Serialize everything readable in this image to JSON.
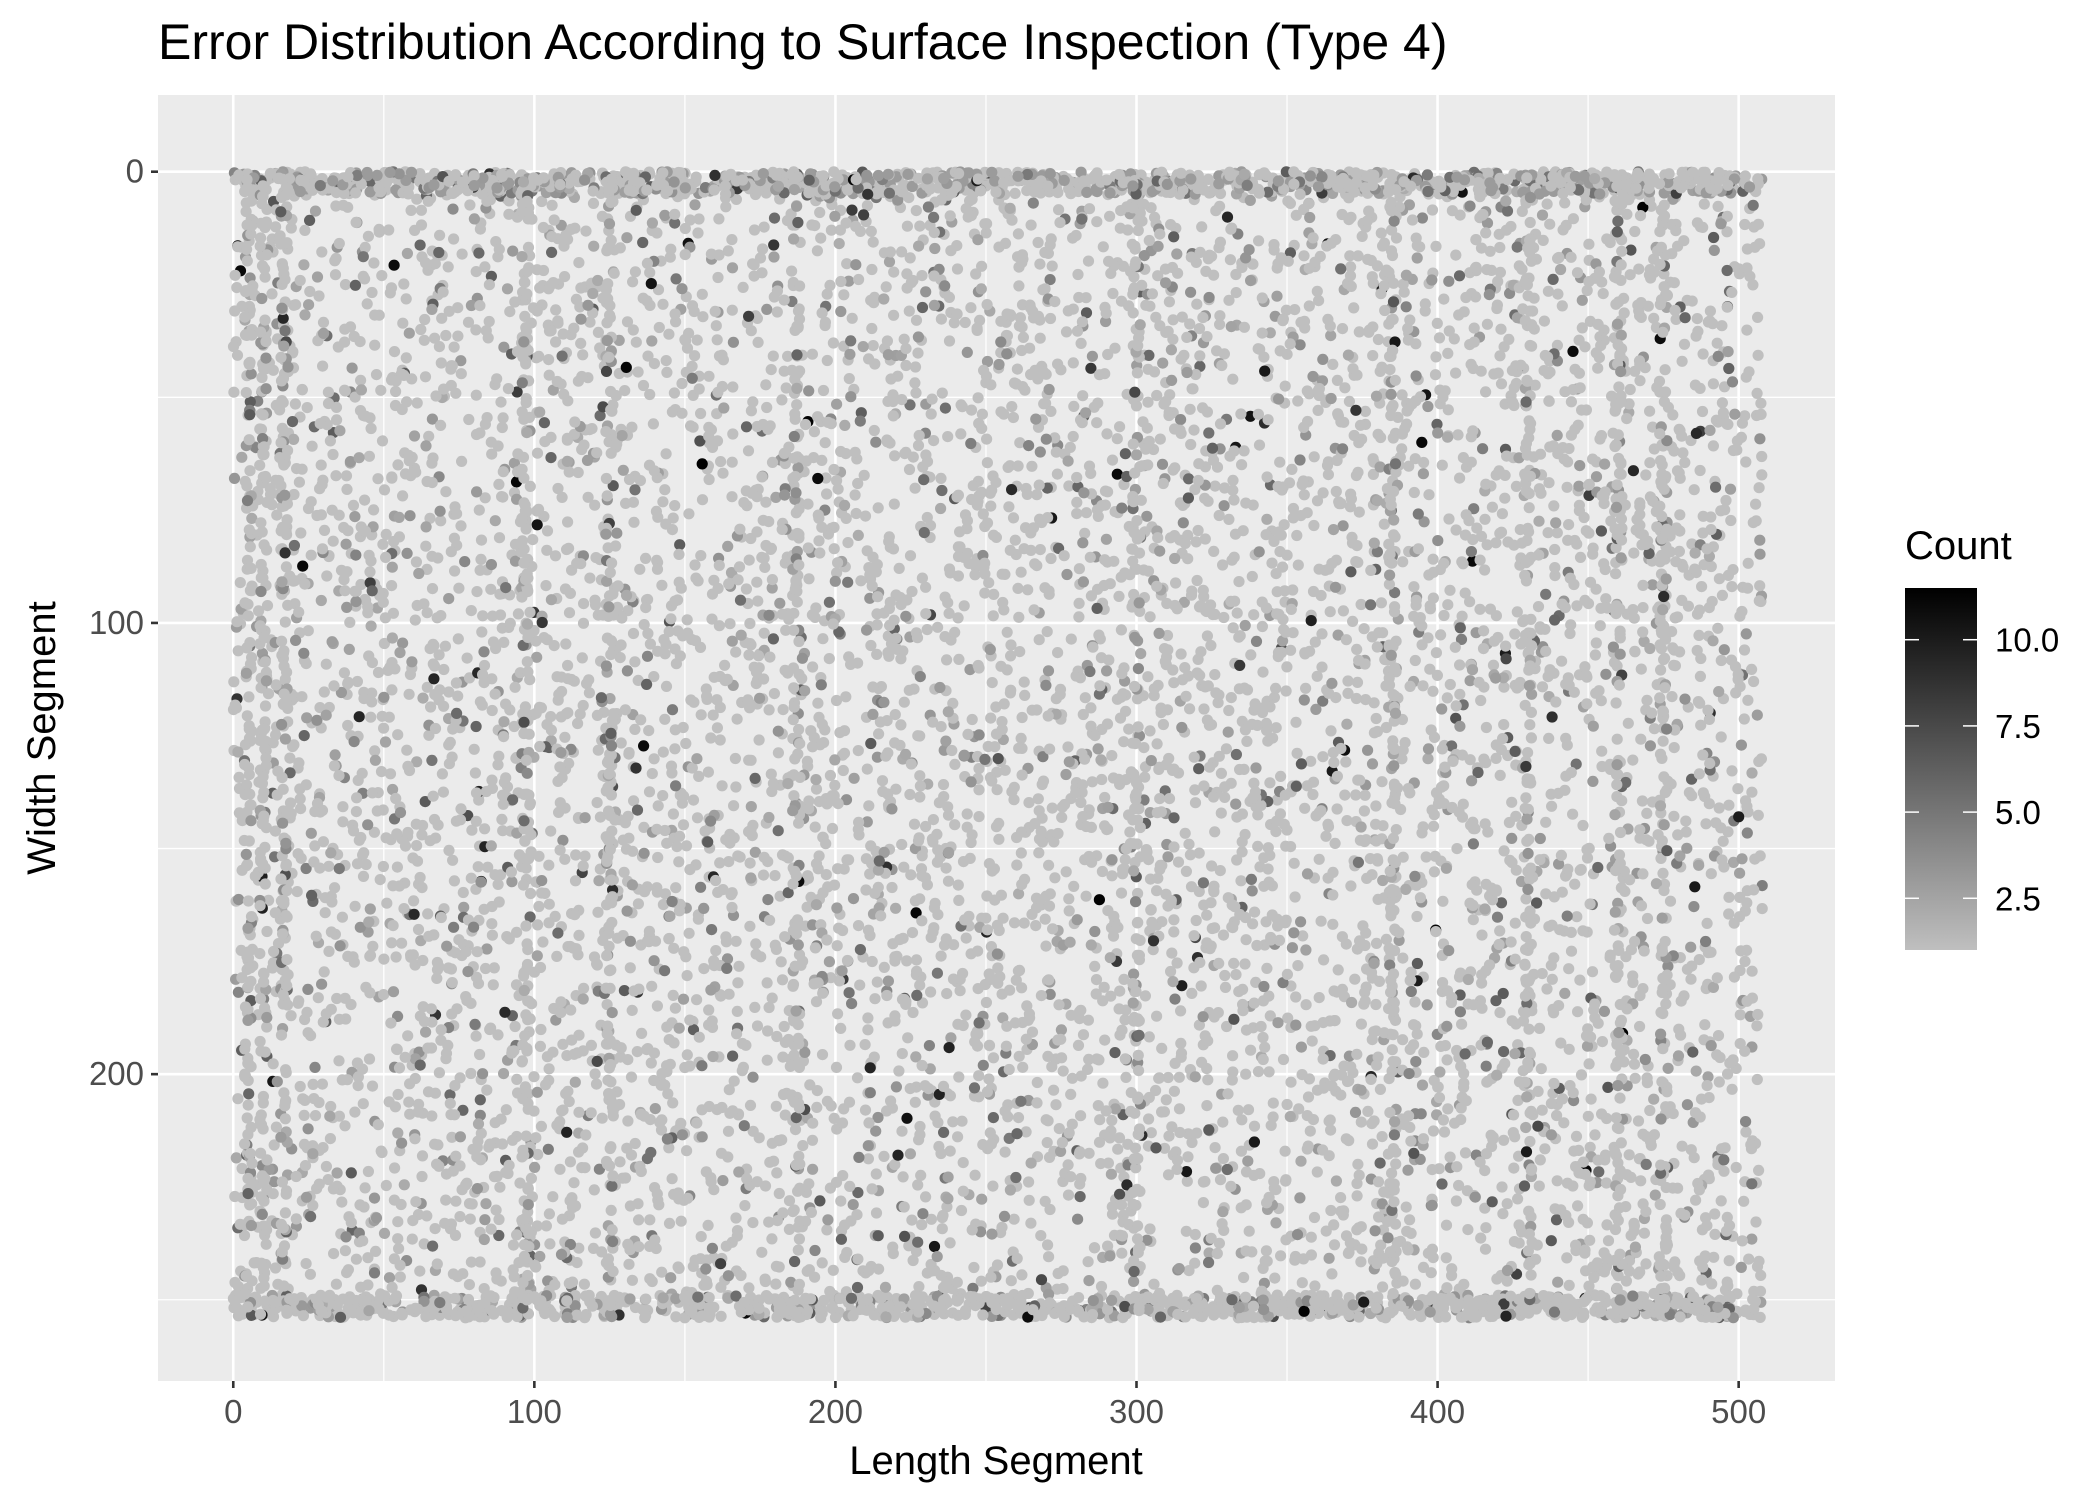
{
  "chart_data": {
    "type": "scatter",
    "title": "Error Distribution According to Surface Inspection (Type 4)",
    "xlabel": "Length Segment",
    "ylabel": "Width Segment",
    "xlim": [
      -25,
      532
    ],
    "ylim": [
      268,
      -17
    ],
    "y_reversed": true,
    "x_ticks": [
      0,
      100,
      200,
      300,
      400,
      500
    ],
    "y_ticks": [
      0,
      100,
      200
    ],
    "grid": true,
    "legend": {
      "title": "Count",
      "placement": "right",
      "type": "colorbar",
      "range": [
        1,
        11.5
      ],
      "ticks": [
        2.5,
        5.0,
        7.5,
        10.0
      ],
      "tick_labels": [
        "2.5",
        "5.0",
        "7.5",
        "10.0"
      ],
      "color_low": "#bfbfbf",
      "color_high": "#000000"
    },
    "colors": {
      "panel_background": "#ebebeb",
      "grid": "#ffffff",
      "point_low": "#bfbfbf",
      "point_high": "#000000"
    },
    "point_density_note": "dense scatter over length 0-508 and width 0-254; vertical streaks at x≈5,10,17,97,125,187,300,385,430,460,475; horizontal dense bands at y≈2 and y≈252"
  }
}
